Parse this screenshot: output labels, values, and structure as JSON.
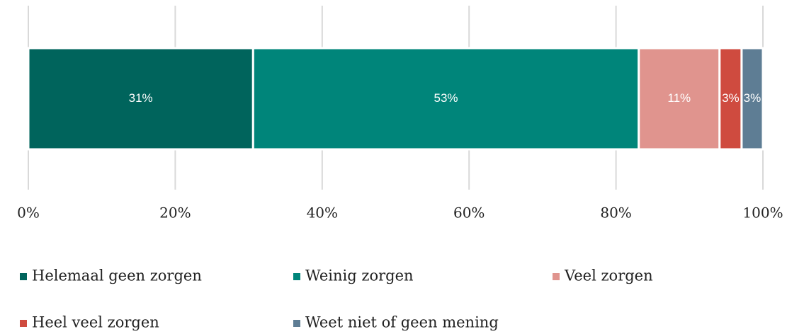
{
  "chart_data": {
    "type": "bar",
    "orientation": "horizontal",
    "stacked": true,
    "xlim": [
      0,
      100
    ],
    "xticks": [
      {
        "value": 0,
        "label": "0%"
      },
      {
        "value": 20,
        "label": "20%"
      },
      {
        "value": 40,
        "label": "40%"
      },
      {
        "value": 60,
        "label": "60%"
      },
      {
        "value": 80,
        "label": "80%"
      },
      {
        "value": 100,
        "label": "100%"
      }
    ],
    "grid": true,
    "legend": "bottom",
    "series": [
      {
        "name": "Helemaal geen zorgen",
        "color": "#00645c",
        "values": [
          30.6
        ],
        "value_labels": [
          "31%"
        ]
      },
      {
        "name": "Weinig zorgen",
        "color": "#00857a",
        "values": [
          52.5
        ],
        "value_labels": [
          "53%"
        ]
      },
      {
        "name": "Veel zorgen",
        "color": "#e0948e",
        "values": [
          11.0
        ],
        "value_labels": [
          "11%"
        ]
      },
      {
        "name": "Heel veel zorgen",
        "color": "#cf4b3f",
        "values": [
          3.0
        ],
        "value_labels": [
          "3%"
        ]
      },
      {
        "name": "Weet niet of geen mening",
        "color": "#5e7d94",
        "values": [
          2.9
        ],
        "value_labels": [
          "3%"
        ]
      }
    ]
  }
}
